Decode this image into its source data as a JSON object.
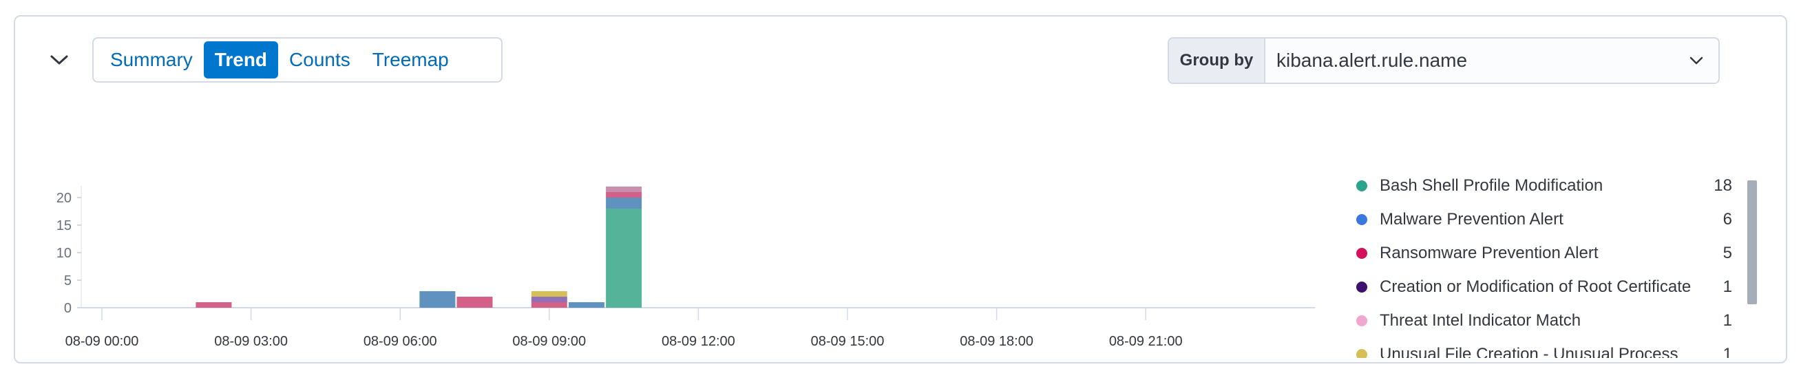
{
  "tabs": [
    {
      "label": "Summary",
      "active": false
    },
    {
      "label": "Trend",
      "active": true
    },
    {
      "label": "Counts",
      "active": false
    },
    {
      "label": "Treemap",
      "active": false
    }
  ],
  "group_by": {
    "label": "Group by",
    "value": "kibana.alert.rule.name"
  },
  "icons": {
    "collapse": "chevron-down-icon",
    "select": "chevron-down-icon"
  },
  "colors": {
    "accent": "#0077cc",
    "link": "#006bb8"
  },
  "legend": [
    {
      "name": "Bash Shell Profile Modification",
      "count": "18",
      "color": "#2aa58b"
    },
    {
      "name": "Malware Prevention Alert",
      "count": "6",
      "color": "#3a77e0"
    },
    {
      "name": "Ransomware Prevention Alert",
      "count": "5",
      "color": "#d0135b"
    },
    {
      "name": "Creation or Modification of Root Certificate",
      "count": "1",
      "color": "#3d0f6e"
    },
    {
      "name": "Threat Intel Indicator Match",
      "count": "1",
      "color": "#f0a6cf"
    },
    {
      "name": "Unusual File Creation - Unusual Process",
      "count": "1",
      "color": "#d6bf57"
    }
  ],
  "chart_data": {
    "type": "bar",
    "stacked": true,
    "x_ticks": [
      "08-09 00:00",
      "08-09 03:00",
      "08-09 06:00",
      "08-09 09:00",
      "08-09 12:00",
      "08-09 15:00",
      "08-09 18:00",
      "08-09 21:00"
    ],
    "y_ticks": [
      0,
      5,
      10,
      15,
      20
    ],
    "ylim": [
      0,
      22
    ],
    "bars": [
      {
        "hour": 2.25,
        "segments": [
          {
            "series": "Ransomware Prevention Alert",
            "value": 1,
            "color": "#d36086"
          }
        ]
      },
      {
        "hour": 6.75,
        "segments": [
          {
            "series": "Malware Prevention Alert",
            "value": 3,
            "color": "#6092c0"
          }
        ]
      },
      {
        "hour": 7.5,
        "segments": [
          {
            "series": "Ransomware Prevention Alert",
            "value": 2,
            "color": "#d36086"
          }
        ]
      },
      {
        "hour": 9.0,
        "segments": [
          {
            "series": "Ransomware Prevention Alert",
            "value": 1,
            "color": "#d36086"
          },
          {
            "series": "Creation or Modification of Root Certificate",
            "value": 1,
            "color": "#9170b8"
          },
          {
            "series": "Unusual File Creation - Unusual Process",
            "value": 1,
            "color": "#d6bf57"
          }
        ]
      },
      {
        "hour": 9.75,
        "segments": [
          {
            "series": "Malware Prevention Alert",
            "value": 1,
            "color": "#6092c0"
          }
        ]
      },
      {
        "hour": 10.5,
        "segments": [
          {
            "series": "Bash Shell Profile Modification",
            "value": 18,
            "color": "#54b399"
          },
          {
            "series": "Malware Prevention Alert",
            "value": 2,
            "color": "#6092c0"
          },
          {
            "series": "Ransomware Prevention Alert",
            "value": 1,
            "color": "#d36086"
          },
          {
            "series": "Threat Intel Indicator Match",
            "value": 1,
            "color": "#ca8eae"
          }
        ]
      }
    ]
  }
}
